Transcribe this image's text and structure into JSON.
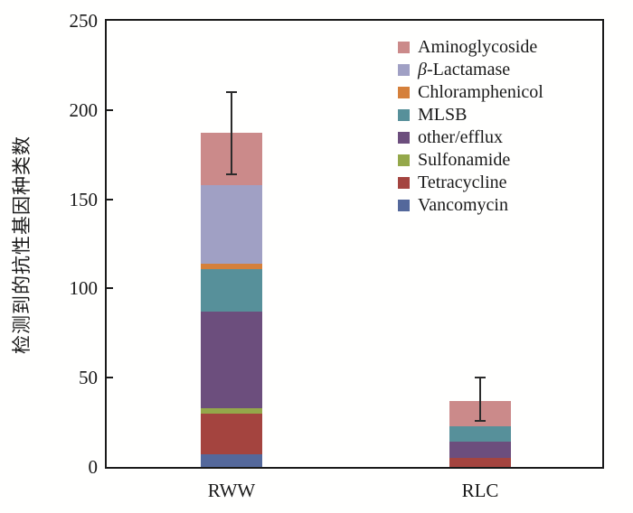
{
  "chart_data": {
    "type": "bar",
    "stacked": true,
    "title": "",
    "xlabel": "",
    "ylabel": "检测到的抗性基因种类数",
    "categories": [
      "RWW",
      "RLC"
    ],
    "series": [
      {
        "name": "Aminoglycoside",
        "color": "#CB8A8A",
        "values": [
          29,
          14
        ]
      },
      {
        "name": "β-Lactamase",
        "color": "#A0A0C4",
        "values": [
          44,
          0
        ]
      },
      {
        "name": "Chloramphenicol",
        "color": "#D5803B",
        "values": [
          3,
          0
        ]
      },
      {
        "name": "MLSB",
        "color": "#57909A",
        "values": [
          24,
          9
        ]
      },
      {
        "name": "other/efflux",
        "color": "#6C4E7D",
        "values": [
          54,
          9
        ]
      },
      {
        "name": "Sulfonamide",
        "color": "#94A84A",
        "values": [
          3,
          0
        ]
      },
      {
        "name": "Tetracycline",
        "color": "#A4443F",
        "values": [
          23,
          5
        ]
      },
      {
        "name": "Vancomycin",
        "color": "#54689B",
        "values": [
          7,
          0
        ]
      }
    ],
    "totals": [
      187,
      37
    ],
    "error_bars": [
      {
        "category": "RWW",
        "low": 164,
        "high": 210
      },
      {
        "category": "RLC",
        "low": 26,
        "high": 50
      }
    ],
    "ylim": [
      0,
      250
    ],
    "yticks": [
      0,
      50,
      100,
      150,
      200,
      250
    ],
    "grid": false,
    "legend_position": "top-right",
    "axis_color": "#1a1a1a"
  }
}
